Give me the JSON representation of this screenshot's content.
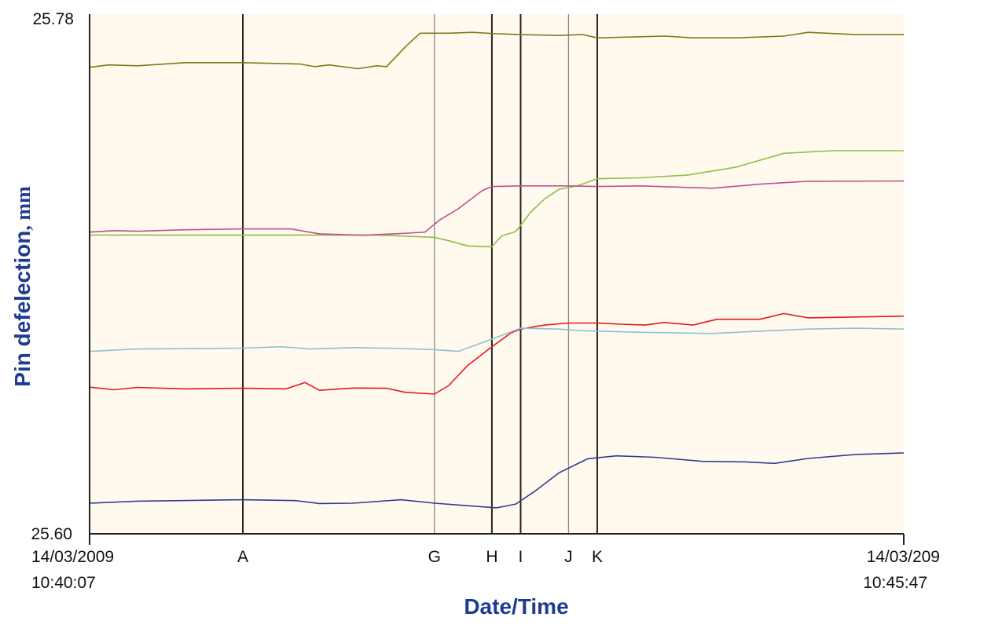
{
  "chart_data": {
    "type": "line",
    "title": "",
    "ylabel": "Pin defelection",
    "ylabel_unit": ", mm",
    "xlabel": "Date/Time",
    "ylim": [
      25.6,
      25.78
    ],
    "y_ticks": [
      "25.78",
      "25.60"
    ],
    "x_start": {
      "date": "14/03/2009",
      "time": "10:40:07"
    },
    "x_end": {
      "date": "14/03/209",
      "time": "10:45:47"
    },
    "x_range_seconds": [
      0,
      340
    ],
    "grid": false,
    "background": "#fffaed",
    "markers": [
      {
        "label": "",
        "t": 0,
        "color": "#222222"
      },
      {
        "label": "A",
        "t": 64,
        "color": "#222222"
      },
      {
        "label": "G",
        "t": 144,
        "color": "#888888"
      },
      {
        "label": "H",
        "t": 168,
        "color": "#222222"
      },
      {
        "label": "I",
        "t": 180,
        "color": "#222222"
      },
      {
        "label": "J",
        "t": 200,
        "color": "#888888"
      },
      {
        "label": "K",
        "t": 212,
        "color": "#222222"
      }
    ],
    "series": [
      {
        "color": "#7b7a1e",
        "points": [
          [
            0,
            25.7616
          ],
          [
            8,
            25.7624
          ],
          [
            20,
            25.7621
          ],
          [
            40,
            25.7632
          ],
          [
            64,
            25.7632
          ],
          [
            88,
            25.7627
          ],
          [
            94,
            25.7618
          ],
          [
            100,
            25.7624
          ],
          [
            112,
            25.7611
          ],
          [
            120,
            25.7621
          ],
          [
            124,
            25.7618
          ],
          [
            132,
            25.7688
          ],
          [
            138,
            25.7734
          ],
          [
            150,
            25.7734
          ],
          [
            160,
            25.7737
          ],
          [
            170,
            25.7732
          ],
          [
            180,
            25.7729
          ],
          [
            196,
            25.7726
          ],
          [
            206,
            25.7729
          ],
          [
            212,
            25.7718
          ],
          [
            240,
            25.7724
          ],
          [
            252,
            25.7718
          ],
          [
            270,
            25.7718
          ],
          [
            290,
            25.7724
          ],
          [
            300,
            25.7737
          ],
          [
            320,
            25.7729
          ],
          [
            340,
            25.7729
          ]
        ]
      },
      {
        "color": "#8ac047",
        "points": [
          [
            0,
            25.7035
          ],
          [
            64,
            25.7035
          ],
          [
            120,
            25.7035
          ],
          [
            144,
            25.7027
          ],
          [
            150,
            25.7015
          ],
          [
            158,
            25.6997
          ],
          [
            168,
            25.6994
          ],
          [
            172,
            25.7031
          ],
          [
            178,
            25.7047
          ],
          [
            184,
            25.7112
          ],
          [
            190,
            25.716
          ],
          [
            196,
            25.7193
          ],
          [
            204,
            25.7206
          ],
          [
            212,
            25.723
          ],
          [
            230,
            25.7233
          ],
          [
            250,
            25.7243
          ],
          [
            270,
            25.727
          ],
          [
            290,
            25.7318
          ],
          [
            310,
            25.7327
          ],
          [
            340,
            25.7327
          ]
        ]
      },
      {
        "color": "#c0508e",
        "points": [
          [
            0,
            25.7045
          ],
          [
            10,
            25.705
          ],
          [
            20,
            25.7048
          ],
          [
            40,
            25.7053
          ],
          [
            64,
            25.7056
          ],
          [
            84,
            25.7056
          ],
          [
            96,
            25.7039
          ],
          [
            114,
            25.7034
          ],
          [
            130,
            25.704
          ],
          [
            140,
            25.7045
          ],
          [
            146,
            25.7086
          ],
          [
            154,
            25.7126
          ],
          [
            164,
            25.7189
          ],
          [
            168,
            25.7203
          ],
          [
            180,
            25.7205
          ],
          [
            200,
            25.7205
          ],
          [
            212,
            25.7203
          ],
          [
            230,
            25.7205
          ],
          [
            260,
            25.7197
          ],
          [
            280,
            25.7211
          ],
          [
            300,
            25.7221
          ],
          [
            340,
            25.7222
          ]
        ]
      },
      {
        "color": "#e8161c",
        "points": [
          [
            0,
            25.6508
          ],
          [
            10,
            25.6499
          ],
          [
            20,
            25.6507
          ],
          [
            40,
            25.6502
          ],
          [
            64,
            25.6504
          ],
          [
            82,
            25.6502
          ],
          [
            90,
            25.6524
          ],
          [
            96,
            25.6497
          ],
          [
            110,
            25.6505
          ],
          [
            124,
            25.6504
          ],
          [
            132,
            25.649
          ],
          [
            144,
            25.6484
          ],
          [
            150,
            25.6514
          ],
          [
            158,
            25.6584
          ],
          [
            168,
            25.6648
          ],
          [
            176,
            25.6696
          ],
          [
            180,
            25.6709
          ],
          [
            190,
            25.6723
          ],
          [
            200,
            25.673
          ],
          [
            212,
            25.673
          ],
          [
            222,
            25.6726
          ],
          [
            232,
            25.6723
          ],
          [
            240,
            25.6732
          ],
          [
            252,
            25.6723
          ],
          [
            262,
            25.6743
          ],
          [
            280,
            25.6743
          ],
          [
            290,
            25.6763
          ],
          [
            300,
            25.6748
          ],
          [
            320,
            25.6751
          ],
          [
            340,
            25.6754
          ]
        ]
      },
      {
        "color": "#8fbfd6",
        "points": [
          [
            0,
            25.6632
          ],
          [
            20,
            25.664
          ],
          [
            64,
            25.6643
          ],
          [
            80,
            25.6648
          ],
          [
            92,
            25.664
          ],
          [
            110,
            25.6645
          ],
          [
            130,
            25.6642
          ],
          [
            144,
            25.6638
          ],
          [
            154,
            25.6632
          ],
          [
            166,
            25.6668
          ],
          [
            180,
            25.6712
          ],
          [
            196,
            25.6709
          ],
          [
            204,
            25.6704
          ],
          [
            212,
            25.6702
          ],
          [
            230,
            25.6698
          ],
          [
            260,
            25.6694
          ],
          [
            280,
            25.6702
          ],
          [
            300,
            25.6709
          ],
          [
            320,
            25.6712
          ],
          [
            340,
            25.6709
          ]
        ]
      },
      {
        "color": "#343b8f",
        "points": [
          [
            0,
            25.6106
          ],
          [
            20,
            25.6113
          ],
          [
            64,
            25.6118
          ],
          [
            86,
            25.6115
          ],
          [
            96,
            25.6105
          ],
          [
            110,
            25.6106
          ],
          [
            130,
            25.6118
          ],
          [
            144,
            25.6106
          ],
          [
            160,
            25.6096
          ],
          [
            170,
            25.609
          ],
          [
            178,
            25.6103
          ],
          [
            186,
            25.6148
          ],
          [
            196,
            25.6211
          ],
          [
            208,
            25.626
          ],
          [
            220,
            25.627
          ],
          [
            236,
            25.6265
          ],
          [
            256,
            25.6251
          ],
          [
            274,
            25.6249
          ],
          [
            286,
            25.6244
          ],
          [
            300,
            25.6261
          ],
          [
            320,
            25.6275
          ],
          [
            340,
            25.628
          ]
        ]
      }
    ]
  }
}
